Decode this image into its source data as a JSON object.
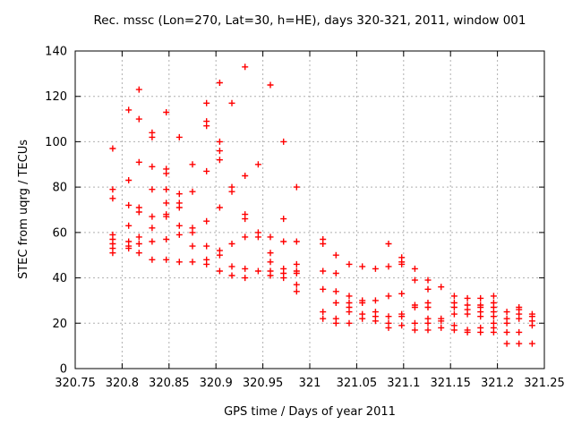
{
  "chart_data": {
    "type": "scatter",
    "title": "Rec. mssc (Lon=270, Lat=30, h=HE), days 320-321, 2011, window 001",
    "xlabel": "GPS time / Days of year 2011",
    "ylabel": "STEC from uqrg / TECUs",
    "xlim": [
      320.75,
      321.25
    ],
    "ylim": [
      0,
      140
    ],
    "xticks": [
      320.75,
      320.8,
      320.85,
      320.9,
      320.95,
      321,
      321.05,
      321.1,
      321.15,
      321.2,
      321.25
    ],
    "xtick_labels": [
      "320.75",
      "320.8",
      "320.85",
      "320.9",
      "320.95",
      "321",
      "321.05",
      "321.1",
      "321.15",
      "321.2",
      "321.25"
    ],
    "yticks": [
      0,
      20,
      40,
      60,
      80,
      100,
      120,
      140
    ],
    "ytick_labels": [
      "0",
      "20",
      "40",
      "60",
      "80",
      "100",
      "120",
      "140"
    ],
    "grid": true,
    "grid_style": "dashed",
    "legend": "none",
    "marker": "plus",
    "colors": {
      "marker": "#ff0000",
      "grid": "#b0b0b0",
      "border": "#000000",
      "text": "#000000",
      "background": "#ffffff"
    },
    "points": [
      [
        320.79,
        97
      ],
      [
        320.79,
        79
      ],
      [
        320.79,
        75
      ],
      [
        320.79,
        59
      ],
      [
        320.79,
        57
      ],
      [
        320.79,
        55
      ],
      [
        320.79,
        53
      ],
      [
        320.79,
        51
      ],
      [
        320.807,
        114
      ],
      [
        320.807,
        83
      ],
      [
        320.807,
        72
      ],
      [
        320.807,
        63
      ],
      [
        320.807,
        56
      ],
      [
        320.807,
        54
      ],
      [
        320.807,
        53
      ],
      [
        320.818,
        123
      ],
      [
        320.818,
        110
      ],
      [
        320.818,
        91
      ],
      [
        320.818,
        71
      ],
      [
        320.818,
        69
      ],
      [
        320.818,
        58
      ],
      [
        320.818,
        55
      ],
      [
        320.818,
        51
      ],
      [
        320.832,
        104
      ],
      [
        320.832,
        102
      ],
      [
        320.832,
        89
      ],
      [
        320.832,
        79
      ],
      [
        320.832,
        67
      ],
      [
        320.832,
        62
      ],
      [
        320.832,
        56
      ],
      [
        320.832,
        48
      ],
      [
        320.847,
        113
      ],
      [
        320.847,
        88
      ],
      [
        320.847,
        86
      ],
      [
        320.847,
        79
      ],
      [
        320.847,
        73
      ],
      [
        320.847,
        68
      ],
      [
        320.847,
        67
      ],
      [
        320.847,
        57
      ],
      [
        320.847,
        48
      ],
      [
        320.861,
        102
      ],
      [
        320.861,
        77
      ],
      [
        320.861,
        73
      ],
      [
        320.861,
        71
      ],
      [
        320.861,
        63
      ],
      [
        320.861,
        59
      ],
      [
        320.861,
        47
      ],
      [
        320.875,
        90
      ],
      [
        320.875,
        78
      ],
      [
        320.875,
        62
      ],
      [
        320.875,
        60
      ],
      [
        320.875,
        54
      ],
      [
        320.875,
        47
      ],
      [
        320.89,
        117
      ],
      [
        320.89,
        109
      ],
      [
        320.89,
        107
      ],
      [
        320.89,
        87
      ],
      [
        320.89,
        65
      ],
      [
        320.89,
        54
      ],
      [
        320.89,
        48
      ],
      [
        320.89,
        46
      ],
      [
        320.904,
        126
      ],
      [
        320.904,
        100
      ],
      [
        320.904,
        96
      ],
      [
        320.904,
        92
      ],
      [
        320.904,
        71
      ],
      [
        320.904,
        52
      ],
      [
        320.904,
        50
      ],
      [
        320.904,
        43
      ],
      [
        320.917,
        117
      ],
      [
        320.917,
        80
      ],
      [
        320.917,
        78
      ],
      [
        320.917,
        55
      ],
      [
        320.917,
        45
      ],
      [
        320.917,
        41
      ],
      [
        320.931,
        133
      ],
      [
        320.931,
        85
      ],
      [
        320.931,
        68
      ],
      [
        320.931,
        66
      ],
      [
        320.931,
        58
      ],
      [
        320.931,
        44
      ],
      [
        320.931,
        40
      ],
      [
        320.945,
        90
      ],
      [
        320.945,
        60
      ],
      [
        320.945,
        58
      ],
      [
        320.945,
        43
      ],
      [
        320.958,
        125
      ],
      [
        320.958,
        58
      ],
      [
        320.958,
        51
      ],
      [
        320.958,
        47
      ],
      [
        320.958,
        43
      ],
      [
        320.958,
        41
      ],
      [
        320.972,
        100
      ],
      [
        320.972,
        66
      ],
      [
        320.972,
        56
      ],
      [
        320.972,
        44
      ],
      [
        320.972,
        42
      ],
      [
        320.972,
        40
      ],
      [
        320.986,
        80
      ],
      [
        320.986,
        56
      ],
      [
        320.986,
        46
      ],
      [
        320.986,
        43
      ],
      [
        320.986,
        42
      ],
      [
        320.986,
        37
      ],
      [
        320.986,
        34
      ],
      [
        321.014,
        57
      ],
      [
        321.014,
        55
      ],
      [
        321.014,
        43
      ],
      [
        321.014,
        35
      ],
      [
        321.014,
        25
      ],
      [
        321.014,
        22
      ],
      [
        321.028,
        50
      ],
      [
        321.028,
        42
      ],
      [
        321.028,
        34
      ],
      [
        321.028,
        29
      ],
      [
        321.028,
        22
      ],
      [
        321.028,
        20
      ],
      [
        321.042,
        46
      ],
      [
        321.042,
        32
      ],
      [
        321.042,
        29
      ],
      [
        321.042,
        27
      ],
      [
        321.042,
        25
      ],
      [
        321.042,
        20
      ],
      [
        321.056,
        45
      ],
      [
        321.056,
        30
      ],
      [
        321.056,
        29
      ],
      [
        321.056,
        24
      ],
      [
        321.056,
        22
      ],
      [
        321.07,
        44
      ],
      [
        321.07,
        30
      ],
      [
        321.07,
        25
      ],
      [
        321.07,
        23
      ],
      [
        321.07,
        21
      ],
      [
        321.084,
        55
      ],
      [
        321.084,
        45
      ],
      [
        321.084,
        32
      ],
      [
        321.084,
        23
      ],
      [
        321.084,
        20
      ],
      [
        321.084,
        18
      ],
      [
        321.098,
        49
      ],
      [
        321.098,
        47
      ],
      [
        321.098,
        46
      ],
      [
        321.098,
        33
      ],
      [
        321.098,
        24
      ],
      [
        321.098,
        23
      ],
      [
        321.098,
        19
      ],
      [
        321.112,
        44
      ],
      [
        321.112,
        39
      ],
      [
        321.112,
        28
      ],
      [
        321.112,
        27
      ],
      [
        321.112,
        20
      ],
      [
        321.112,
        17
      ],
      [
        321.126,
        39
      ],
      [
        321.126,
        35
      ],
      [
        321.126,
        29
      ],
      [
        321.126,
        27
      ],
      [
        321.126,
        22
      ],
      [
        321.126,
        20
      ],
      [
        321.126,
        17
      ],
      [
        321.14,
        36
      ],
      [
        321.14,
        22
      ],
      [
        321.14,
        21
      ],
      [
        321.14,
        18
      ],
      [
        321.154,
        32
      ],
      [
        321.154,
        29
      ],
      [
        321.154,
        27
      ],
      [
        321.154,
        24
      ],
      [
        321.154,
        19
      ],
      [
        321.154,
        17
      ],
      [
        321.168,
        31
      ],
      [
        321.168,
        28
      ],
      [
        321.168,
        26
      ],
      [
        321.168,
        24
      ],
      [
        321.168,
        17
      ],
      [
        321.168,
        16
      ],
      [
        321.182,
        31
      ],
      [
        321.182,
        28
      ],
      [
        321.182,
        27
      ],
      [
        321.182,
        25
      ],
      [
        321.182,
        23
      ],
      [
        321.182,
        18
      ],
      [
        321.182,
        16
      ],
      [
        321.196,
        32
      ],
      [
        321.196,
        29
      ],
      [
        321.196,
        27
      ],
      [
        321.196,
        25
      ],
      [
        321.196,
        23
      ],
      [
        321.196,
        20
      ],
      [
        321.196,
        18
      ],
      [
        321.196,
        16
      ],
      [
        321.21,
        25
      ],
      [
        321.21,
        22
      ],
      [
        321.21,
        20
      ],
      [
        321.21,
        16
      ],
      [
        321.21,
        11
      ],
      [
        321.223,
        27
      ],
      [
        321.223,
        26
      ],
      [
        321.223,
        24
      ],
      [
        321.223,
        22
      ],
      [
        321.223,
        16
      ],
      [
        321.223,
        11
      ],
      [
        321.237,
        24
      ],
      [
        321.237,
        23
      ],
      [
        321.237,
        21
      ],
      [
        321.237,
        19
      ],
      [
        321.237,
        11
      ]
    ]
  }
}
